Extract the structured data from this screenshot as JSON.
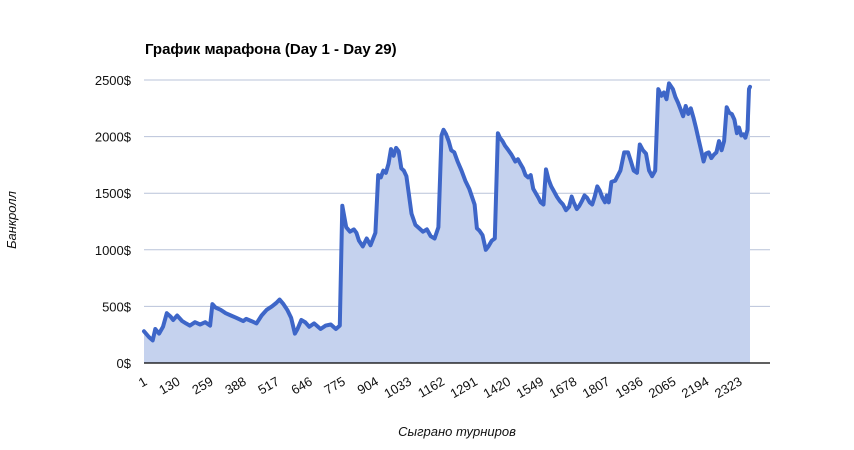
{
  "chart_data": {
    "type": "area",
    "title": "График марафона (Day 1 - Day 29)",
    "xlabel": "Сыграно турниров",
    "ylabel": "Банкролл",
    "ylim": [
      0,
      2500
    ],
    "xlim": [
      1,
      2444
    ],
    "grid": true,
    "y_ticks": [
      "0$",
      "500$",
      "1000$",
      "1500$",
      "2000$",
      "2500$"
    ],
    "x_ticks": [
      "1",
      "130",
      "259",
      "388",
      "517",
      "646",
      "775",
      "904",
      "1033",
      "1162",
      "1291",
      "1420",
      "1549",
      "1678",
      "1807",
      "1936",
      "2065",
      "2194",
      "2323"
    ],
    "colors": {
      "line": "#3e66c8",
      "fill": "#c5d2ee",
      "grid": "#b9c3d9"
    },
    "series": [
      {
        "values": [
          [
            1,
            280
          ],
          [
            20,
            230
          ],
          [
            35,
            200
          ],
          [
            45,
            300
          ],
          [
            60,
            260
          ],
          [
            75,
            320
          ],
          [
            90,
            440
          ],
          [
            105,
            410
          ],
          [
            115,
            380
          ],
          [
            130,
            420
          ],
          [
            150,
            370
          ],
          [
            165,
            350
          ],
          [
            180,
            330
          ],
          [
            200,
            360
          ],
          [
            220,
            340
          ],
          [
            240,
            360
          ],
          [
            259,
            330
          ],
          [
            268,
            520
          ],
          [
            280,
            490
          ],
          [
            300,
            470
          ],
          [
            320,
            440
          ],
          [
            340,
            420
          ],
          [
            360,
            400
          ],
          [
            388,
            370
          ],
          [
            400,
            390
          ],
          [
            420,
            370
          ],
          [
            440,
            350
          ],
          [
            460,
            420
          ],
          [
            480,
            470
          ],
          [
            500,
            500
          ],
          [
            517,
            530
          ],
          [
            530,
            560
          ],
          [
            545,
            520
          ],
          [
            560,
            470
          ],
          [
            575,
            400
          ],
          [
            590,
            260
          ],
          [
            600,
            300
          ],
          [
            615,
            380
          ],
          [
            630,
            360
          ],
          [
            646,
            320
          ],
          [
            665,
            350
          ],
          [
            690,
            300
          ],
          [
            710,
            330
          ],
          [
            730,
            340
          ],
          [
            750,
            300
          ],
          [
            765,
            330
          ],
          [
            775,
            1390
          ],
          [
            790,
            1200
          ],
          [
            805,
            1160
          ],
          [
            820,
            1180
          ],
          [
            830,
            1150
          ],
          [
            840,
            1080
          ],
          [
            855,
            1030
          ],
          [
            870,
            1100
          ],
          [
            885,
            1040
          ],
          [
            904,
            1150
          ],
          [
            915,
            1660
          ],
          [
            925,
            1640
          ],
          [
            935,
            1700
          ],
          [
            945,
            1680
          ],
          [
            955,
            1760
          ],
          [
            965,
            1890
          ],
          [
            975,
            1830
          ],
          [
            985,
            1900
          ],
          [
            995,
            1870
          ],
          [
            1005,
            1720
          ],
          [
            1015,
            1700
          ],
          [
            1025,
            1650
          ],
          [
            1033,
            1520
          ],
          [
            1045,
            1320
          ],
          [
            1060,
            1220
          ],
          [
            1075,
            1190
          ],
          [
            1090,
            1160
          ],
          [
            1105,
            1180
          ],
          [
            1120,
            1120
          ],
          [
            1135,
            1100
          ],
          [
            1150,
            1200
          ],
          [
            1162,
            2010
          ],
          [
            1170,
            2060
          ],
          [
            1180,
            2020
          ],
          [
            1190,
            1960
          ],
          [
            1200,
            1880
          ],
          [
            1212,
            1860
          ],
          [
            1225,
            1780
          ],
          [
            1240,
            1700
          ],
          [
            1255,
            1610
          ],
          [
            1270,
            1540
          ],
          [
            1291,
            1400
          ],
          [
            1300,
            1190
          ],
          [
            1310,
            1170
          ],
          [
            1322,
            1130
          ],
          [
            1335,
            1000
          ],
          [
            1345,
            1030
          ],
          [
            1358,
            1080
          ],
          [
            1370,
            1100
          ],
          [
            1382,
            2030
          ],
          [
            1390,
            1990
          ],
          [
            1400,
            1960
          ],
          [
            1410,
            1920
          ],
          [
            1420,
            1890
          ],
          [
            1435,
            1840
          ],
          [
            1450,
            1780
          ],
          [
            1460,
            1800
          ],
          [
            1470,
            1760
          ],
          [
            1480,
            1720
          ],
          [
            1490,
            1660
          ],
          [
            1500,
            1640
          ],
          [
            1510,
            1660
          ],
          [
            1520,
            1540
          ],
          [
            1530,
            1500
          ],
          [
            1540,
            1460
          ],
          [
            1549,
            1420
          ],
          [
            1560,
            1400
          ],
          [
            1570,
            1710
          ],
          [
            1580,
            1620
          ],
          [
            1590,
            1560
          ],
          [
            1600,
            1520
          ],
          [
            1612,
            1470
          ],
          [
            1624,
            1430
          ],
          [
            1636,
            1400
          ],
          [
            1648,
            1350
          ],
          [
            1660,
            1380
          ],
          [
            1670,
            1470
          ],
          [
            1678,
            1420
          ],
          [
            1690,
            1360
          ],
          [
            1700,
            1390
          ],
          [
            1710,
            1430
          ],
          [
            1720,
            1480
          ],
          [
            1730,
            1460
          ],
          [
            1740,
            1420
          ],
          [
            1750,
            1400
          ],
          [
            1760,
            1470
          ],
          [
            1770,
            1560
          ],
          [
            1780,
            1520
          ],
          [
            1790,
            1460
          ],
          [
            1800,
            1420
          ],
          [
            1807,
            1480
          ],
          [
            1815,
            1420
          ],
          [
            1825,
            1600
          ],
          [
            1840,
            1610
          ],
          [
            1860,
            1700
          ],
          [
            1875,
            1860
          ],
          [
            1890,
            1860
          ],
          [
            1900,
            1790
          ],
          [
            1912,
            1700
          ],
          [
            1925,
            1680
          ],
          [
            1936,
            1930
          ],
          [
            1948,
            1880
          ],
          [
            1960,
            1850
          ],
          [
            1972,
            1700
          ],
          [
            1984,
            1650
          ],
          [
            1996,
            1700
          ],
          [
            2008,
            2420
          ],
          [
            2020,
            2360
          ],
          [
            2030,
            2390
          ],
          [
            2040,
            2330
          ],
          [
            2050,
            2470
          ],
          [
            2065,
            2420
          ],
          [
            2075,
            2350
          ],
          [
            2085,
            2300
          ],
          [
            2095,
            2240
          ],
          [
            2105,
            2180
          ],
          [
            2115,
            2270
          ],
          [
            2125,
            2200
          ],
          [
            2135,
            2250
          ],
          [
            2145,
            2170
          ],
          [
            2155,
            2080
          ],
          [
            2165,
            1980
          ],
          [
            2175,
            1880
          ],
          [
            2185,
            1780
          ],
          [
            2194,
            1850
          ],
          [
            2205,
            1860
          ],
          [
            2215,
            1810
          ],
          [
            2225,
            1840
          ],
          [
            2235,
            1860
          ],
          [
            2245,
            1960
          ],
          [
            2255,
            1880
          ],
          [
            2265,
            1960
          ],
          [
            2275,
            2260
          ],
          [
            2285,
            2210
          ],
          [
            2295,
            2200
          ],
          [
            2305,
            2150
          ],
          [
            2315,
            2030
          ],
          [
            2323,
            2080
          ],
          [
            2332,
            2010
          ],
          [
            2340,
            2020
          ],
          [
            2348,
            1990
          ],
          [
            2356,
            2060
          ],
          [
            2362,
            2420
          ],
          [
            2366,
            2440
          ]
        ]
      }
    ]
  }
}
